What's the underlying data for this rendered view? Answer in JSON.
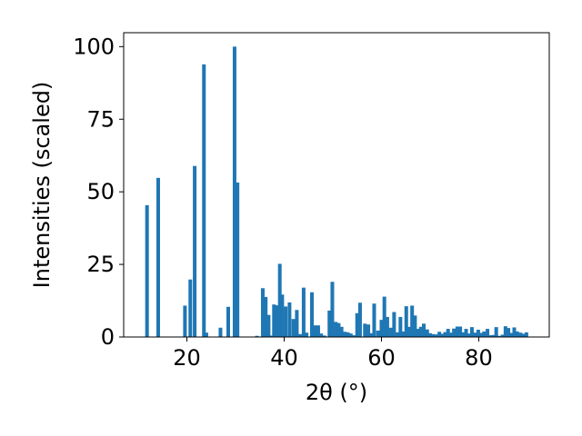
{
  "chart_data": {
    "type": "bar",
    "xlabel": "2θ (°)",
    "ylabel": "Intensities (scaled)",
    "xlim": [
      7,
      94.5
    ],
    "ylim": [
      0,
      104.8
    ],
    "xticks": [
      20,
      40,
      60,
      80
    ],
    "yticks": [
      0,
      25,
      50,
      75,
      100
    ],
    "bar_color": "#1f77b4",
    "bar_width": 0.75,
    "grid": false,
    "x": [
      11.8,
      14.1,
      19.6,
      20.7,
      21.6,
      23.5,
      24.0,
      26.9,
      28.5,
      29.8,
      30.4,
      34.4,
      35.6,
      36.2,
      36.8,
      37.4,
      37.9,
      38.5,
      39.1,
      39.6,
      40.3,
      41.1,
      41.9,
      42.6,
      43.3,
      44.0,
      44.6,
      45.7,
      46.3,
      47.0,
      47.6,
      48.3,
      49.3,
      49.9,
      50.6,
      51.2,
      51.8,
      52.5,
      53.1,
      53.7,
      54.3,
      55.0,
      55.6,
      56.6,
      57.3,
      57.9,
      58.5,
      59.3,
      60.0,
      60.6,
      61.2,
      61.9,
      62.6,
      63.3,
      63.9,
      64.5,
      65.1,
      65.7,
      66.3,
      66.9,
      67.5,
      68.1,
      68.7,
      69.4,
      70.0,
      70.6,
      71.2,
      71.9,
      72.5,
      73.1,
      73.7,
      74.3,
      74.9,
      75.6,
      76.2,
      76.8,
      77.4,
      78.0,
      78.6,
      79.3,
      79.9,
      80.5,
      81.1,
      81.8,
      82.4,
      83.0,
      83.6,
      84.2,
      84.9,
      85.5,
      86.1,
      86.7,
      87.3,
      87.9,
      88.6,
      89.2,
      89.8
    ],
    "values": [
      45.4,
      54.8,
      10.8,
      19.8,
      58.9,
      93.9,
      1.5,
      3.2,
      10.4,
      100.0,
      53.2,
      0.4,
      16.8,
      13.8,
      7.6,
      0.5,
      11.2,
      10.9,
      25.2,
      14.6,
      10.5,
      11.9,
      6.2,
      9.3,
      1.0,
      17.0,
      1.5,
      15.4,
      4.0,
      4.0,
      1.2,
      0.5,
      9.1,
      19.0,
      5.2,
      4.8,
      3.5,
      1.8,
      1.6,
      1.2,
      0.6,
      8.2,
      11.8,
      4.6,
      4.3,
      1.3,
      11.5,
      2.2,
      5.9,
      13.9,
      6.9,
      3.2,
      8.6,
      1.6,
      6.9,
      1.9,
      10.6,
      3.5,
      10.8,
      7.4,
      2.8,
      3.5,
      4.6,
      2.6,
      1.3,
      1.0,
      0.9,
      1.8,
      1.1,
      1.7,
      2.8,
      1.5,
      2.9,
      3.6,
      3.6,
      1.6,
      2.8,
      1.2,
      3.4,
      1.5,
      2.5,
      1.4,
      1.9,
      2.8,
      0.6,
      0.7,
      3.4,
      0.4,
      0.8,
      3.7,
      3.1,
      1.4,
      3.3,
      1.9,
      1.5,
      1.1,
      1.6
    ]
  }
}
